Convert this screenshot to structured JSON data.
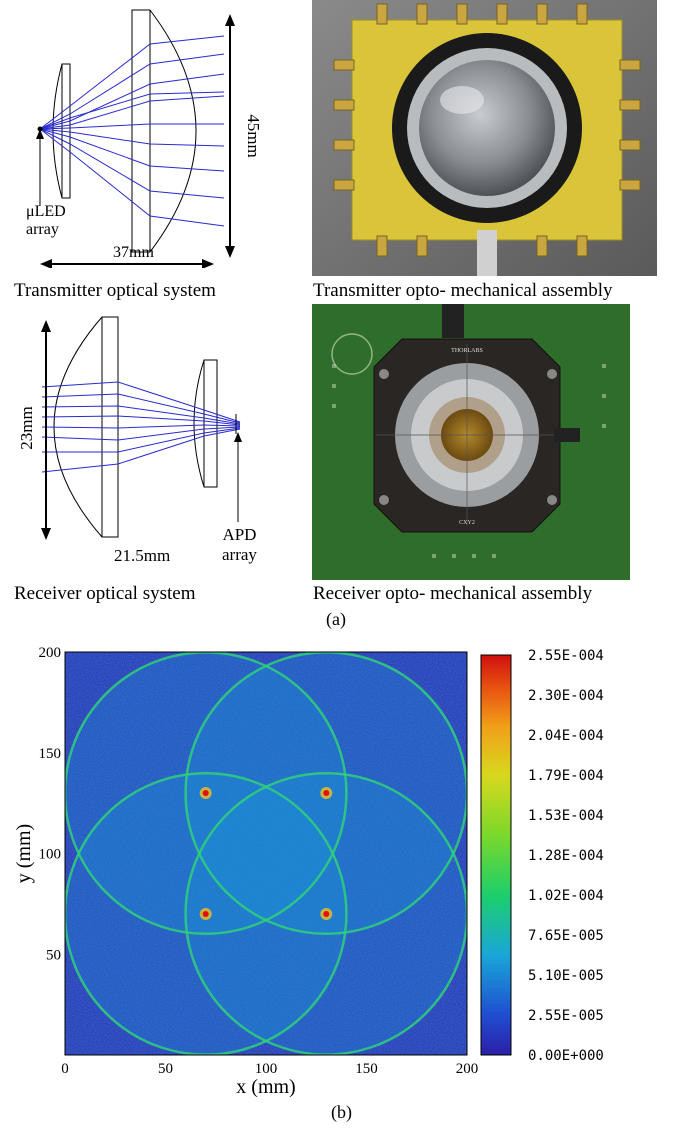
{
  "panel_a": {
    "transmitter_optics": {
      "caption": "Transmitter optical system",
      "source_label_line1": "μLED",
      "source_label_line2": "array",
      "width_label": "37mm",
      "height_label": "45mm"
    },
    "transmitter_photo": {
      "caption": "Transmitter opto- mechanical assembly"
    },
    "receiver_optics": {
      "caption": "Receiver optical system",
      "height_label": "23mm",
      "width_label": "21.5mm",
      "detector_label_line1": "APD",
      "detector_label_line2": "array"
    },
    "receiver_photo": {
      "caption": "Receiver opto- mechanical assembly",
      "brand_text": "THORLABS",
      "part_text": "CXY2"
    },
    "panel_label": "(a)"
  },
  "panel_b": {
    "panel_label": "(b)",
    "colors": {
      "background_low": "#1f2fb0",
      "ring": "#2fd07a",
      "peak": "#e01010"
    }
  },
  "chart_data": {
    "type": "heatmap",
    "title": "",
    "xlabel": "x (mm)",
    "ylabel": "y (mm)",
    "xlim": [
      0,
      200
    ],
    "ylim": [
      0,
      200
    ],
    "x_ticks": [
      "0",
      "50",
      "100",
      "150",
      "200"
    ],
    "y_ticks": [
      "50",
      "100",
      "150",
      "200"
    ],
    "circles": [
      {
        "center_x": 70,
        "center_y": 130,
        "radius": 70
      },
      {
        "center_x": 130,
        "center_y": 130,
        "radius": 70
      },
      {
        "center_x": 70,
        "center_y": 70,
        "radius": 70
      },
      {
        "center_x": 130,
        "center_y": 70,
        "radius": 70
      }
    ],
    "peaks": [
      {
        "x": 70,
        "y": 130
      },
      {
        "x": 130,
        "y": 130
      },
      {
        "x": 70,
        "y": 70
      },
      {
        "x": 130,
        "y": 70
      }
    ],
    "colorbar": {
      "min": 0,
      "max": 0.000255,
      "tick_labels": [
        "2.55E-004",
        "2.30E-004",
        "2.04E-004",
        "1.79E-004",
        "1.53E-004",
        "1.28E-004",
        "1.02E-004",
        "7.65E-005",
        "5.10E-005",
        "2.55E-005",
        "0.00E+000"
      ]
    }
  }
}
